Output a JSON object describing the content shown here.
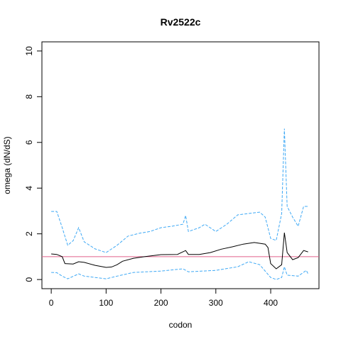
{
  "chart_data": {
    "type": "line",
    "title": "Rv2522c",
    "xlabel": "codon",
    "ylabel": "omega (dN/dS)",
    "xlim": [
      -17,
      488
    ],
    "ylim": [
      -0.4,
      10.4
    ],
    "xticks": [
      0,
      100,
      200,
      300,
      400
    ],
    "yticks": [
      0,
      2,
      4,
      6,
      8,
      10
    ],
    "hline": 1,
    "hline_color": "#e0608a",
    "series": [
      {
        "color": "#000000",
        "dash": false,
        "x": [
          0,
          10,
          20,
          25,
          40,
          50,
          60,
          80,
          100,
          110,
          120,
          130,
          150,
          170,
          200,
          230,
          245,
          250,
          270,
          290,
          310,
          330,
          350,
          370,
          390,
          395,
          400,
          410,
          420,
          425,
          430,
          440,
          450,
          460,
          468
        ],
        "values": [
          1.12,
          1.1,
          1.0,
          0.7,
          0.68,
          0.78,
          0.75,
          0.62,
          0.53,
          0.55,
          0.65,
          0.8,
          0.93,
          1.0,
          1.09,
          1.1,
          1.27,
          1.1,
          1.1,
          1.18,
          1.33,
          1.43,
          1.55,
          1.62,
          1.55,
          1.4,
          0.7,
          0.47,
          0.65,
          2.05,
          1.18,
          0.87,
          0.96,
          1.27,
          1.21
        ]
      },
      {
        "color": "#3fa9f5",
        "dash": true,
        "x": [
          0,
          10,
          20,
          30,
          40,
          50,
          60,
          80,
          100,
          120,
          140,
          160,
          180,
          200,
          220,
          240,
          245,
          250,
          270,
          280,
          300,
          320,
          340,
          360,
          380,
          390,
          400,
          410,
          420,
          425,
          430,
          440,
          450,
          460,
          468
        ],
        "values": [
          2.98,
          2.98,
          2.27,
          1.5,
          1.7,
          2.27,
          1.65,
          1.34,
          1.18,
          1.5,
          1.9,
          2.02,
          2.1,
          2.27,
          2.33,
          2.42,
          2.8,
          2.1,
          2.27,
          2.42,
          2.1,
          2.42,
          2.83,
          2.89,
          2.95,
          2.73,
          1.8,
          1.71,
          2.89,
          6.6,
          3.2,
          2.73,
          2.33,
          3.2,
          3.2
        ]
      },
      {
        "color": "#3fa9f5",
        "dash": true,
        "x": [
          0,
          10,
          20,
          30,
          50,
          60,
          80,
          100,
          120,
          150,
          200,
          240,
          250,
          300,
          340,
          360,
          380,
          400,
          410,
          420,
          425,
          430,
          450,
          465,
          468
        ],
        "values": [
          0.31,
          0.3,
          0.15,
          0.03,
          0.25,
          0.15,
          0.09,
          0.03,
          0.15,
          0.31,
          0.37,
          0.47,
          0.34,
          0.4,
          0.56,
          0.78,
          0.65,
          0.09,
          0.0,
          0.09,
          0.56,
          0.19,
          0.15,
          0.4,
          0.25
        ]
      }
    ]
  }
}
